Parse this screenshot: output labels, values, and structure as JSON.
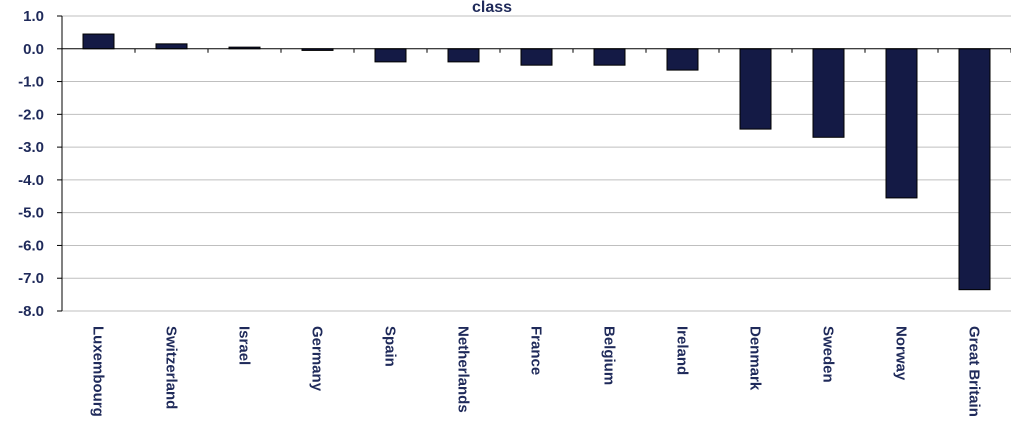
{
  "chart_data": {
    "type": "bar",
    "title": "class",
    "xlabel": "",
    "ylabel": "",
    "categories": [
      "Luxembourg",
      "Switzerland",
      "Israel",
      "Germany",
      "Spain",
      "Netherlands",
      "France",
      "Belgium",
      "Ireland",
      "Denmark",
      "Sweden",
      "Norway",
      "Great Britain"
    ],
    "values": [
      0.45,
      0.15,
      0.05,
      -0.05,
      -0.4,
      -0.4,
      -0.5,
      -0.5,
      -0.65,
      -2.45,
      -2.7,
      -4.55,
      -7.35
    ],
    "ylim": [
      -8.0,
      1.0
    ],
    "yticks": [
      "1.0",
      "0.0",
      "-1.0",
      "-2.0",
      "-3.0",
      "-4.0",
      "-5.0",
      "-6.0",
      "-7.0",
      "-8.0"
    ],
    "grid": true,
    "legend": "none",
    "bar_color": "#141a45",
    "grid_color": "#bfbfbf",
    "text_color": "#1f2a5a"
  }
}
